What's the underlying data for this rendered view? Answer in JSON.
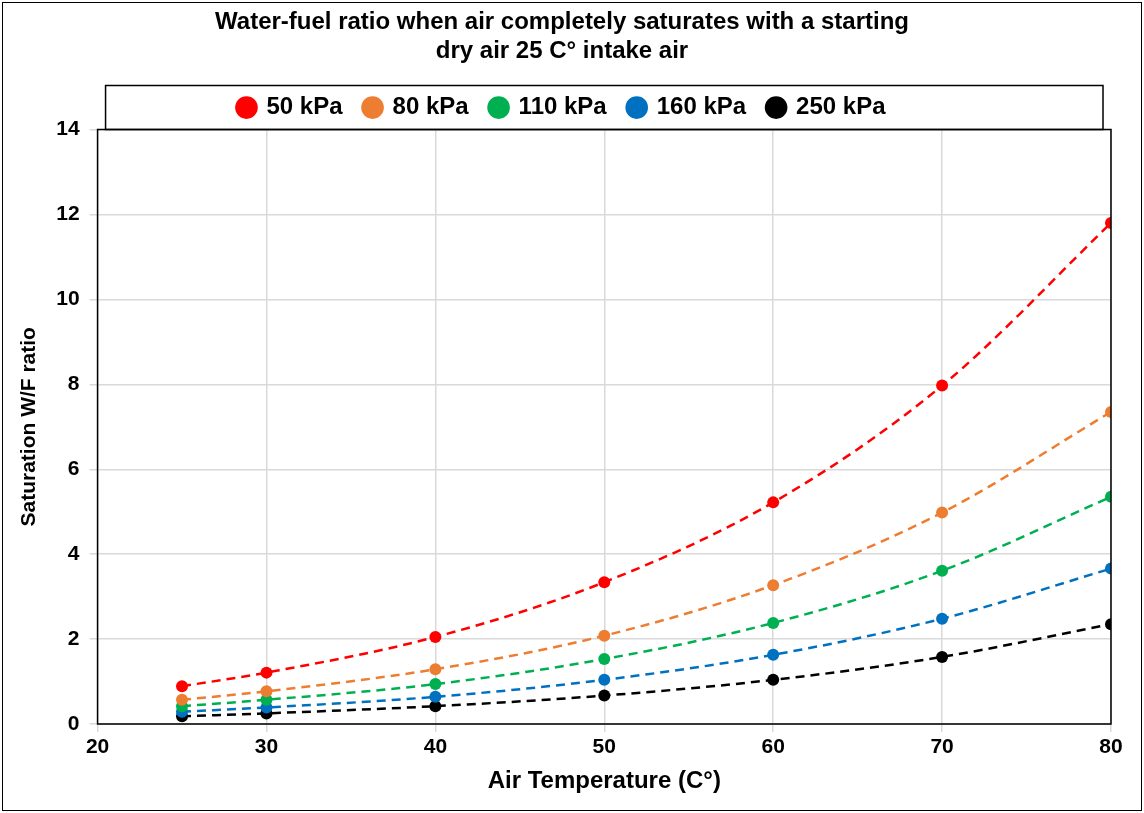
{
  "chart_data": {
    "type": "line",
    "title": "Water-fuel ratio when air completely saturates with a starting dry air 25 C° intake air",
    "xlabel": "Air Temperature (C°)",
    "ylabel": "Saturation W/F ratio",
    "x": [
      25,
      30,
      40,
      50,
      60,
      70,
      80
    ],
    "series": [
      {
        "name": "50 kPa",
        "color": "#ff0000",
        "values": [
          0.89,
          1.21,
          2.05,
          3.34,
          5.22,
          7.97,
          11.8
        ]
      },
      {
        "name": "80 kPa",
        "color": "#ed7d31",
        "values": [
          0.57,
          0.77,
          1.29,
          2.08,
          3.27,
          4.98,
          7.35
        ]
      },
      {
        "name": "110 kPa",
        "color": "#00b050",
        "values": [
          0.42,
          0.57,
          0.94,
          1.53,
          2.38,
          3.61,
          5.35
        ]
      },
      {
        "name": "160 kPa",
        "color": "#0070c0",
        "values": [
          0.29,
          0.39,
          0.64,
          1.04,
          1.63,
          2.48,
          3.66
        ]
      },
      {
        "name": "250 kPa",
        "color": "#000000",
        "values": [
          0.18,
          0.25,
          0.42,
          0.67,
          1.04,
          1.58,
          2.35
        ]
      }
    ],
    "xlim": [
      20,
      80
    ],
    "xticks": [
      20,
      30,
      40,
      50,
      60,
      70,
      80
    ],
    "ylim": [
      0,
      14
    ],
    "yticks": [
      0,
      2,
      4,
      6,
      8,
      10,
      12,
      14
    ],
    "grid": true,
    "legend": "top",
    "marker": "circle",
    "line_style": "dashed"
  }
}
